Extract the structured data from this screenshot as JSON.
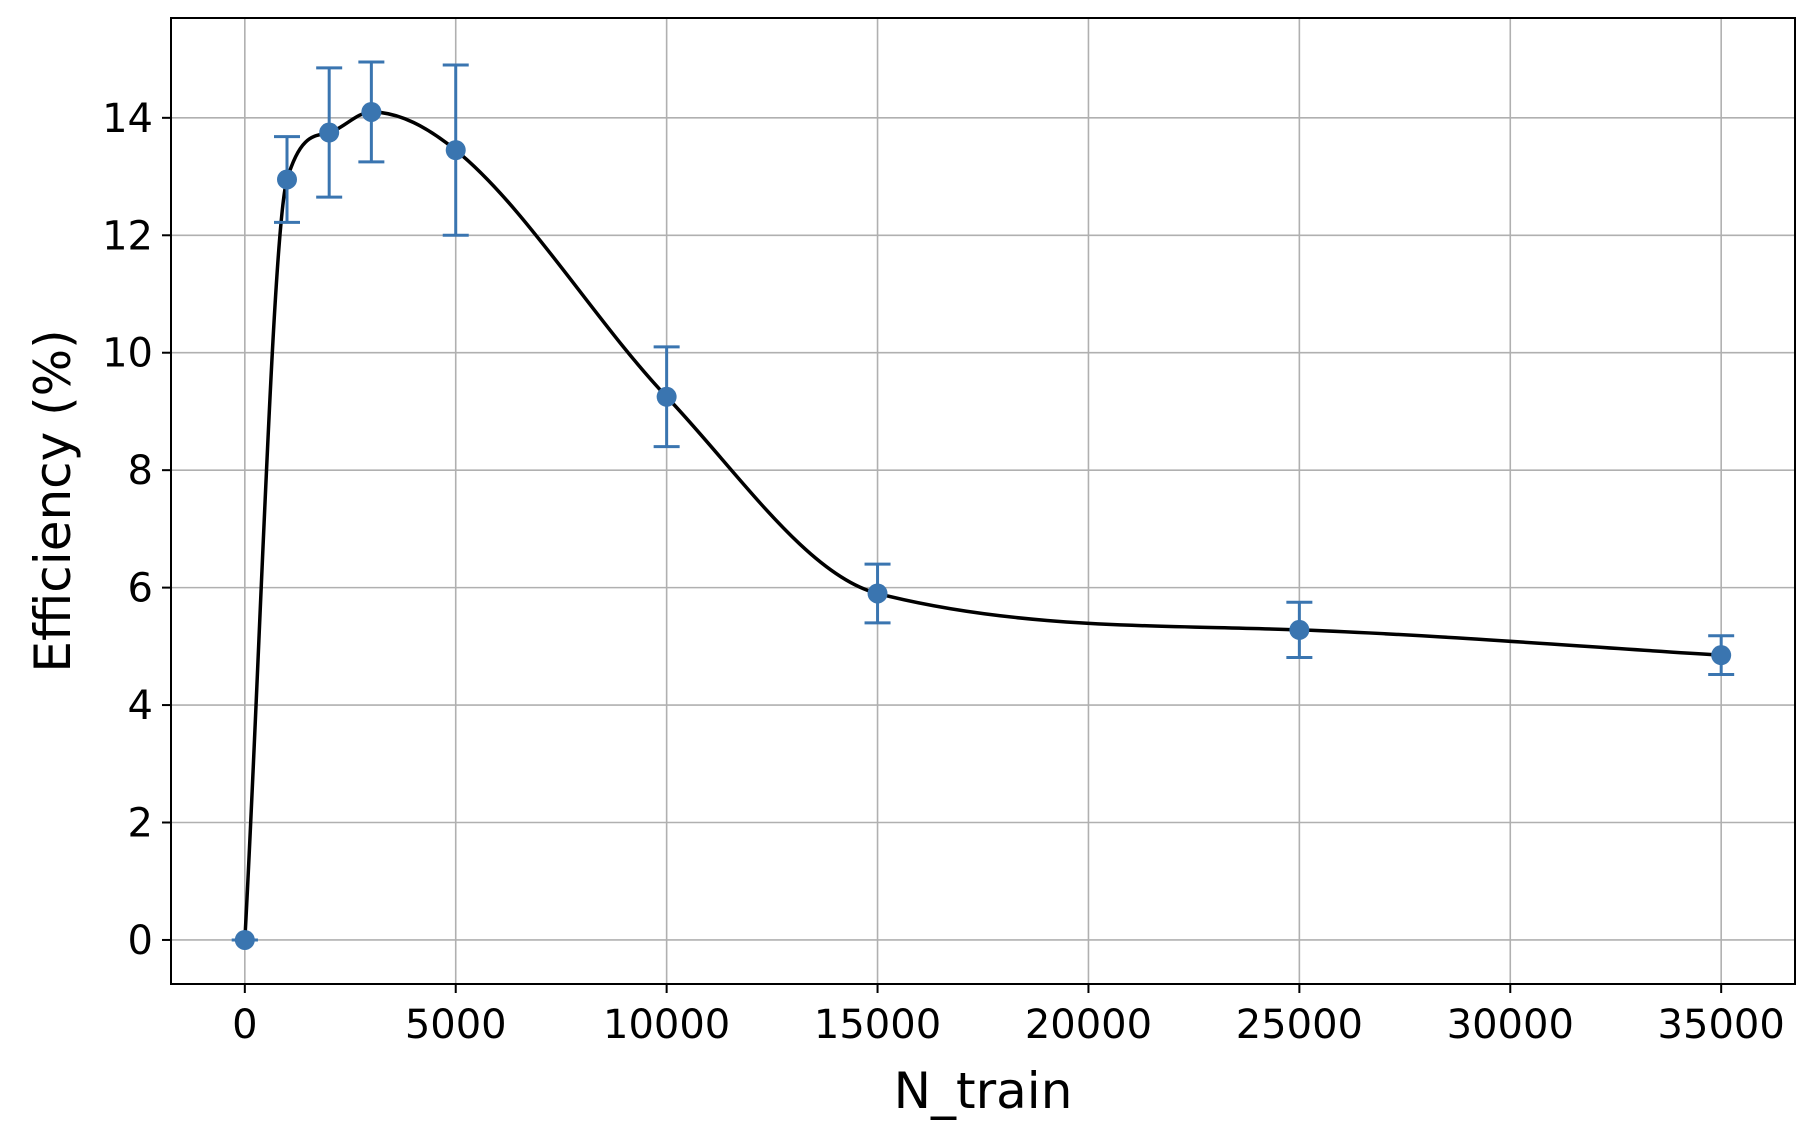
{
  "chart_data": {
    "type": "line",
    "title": "",
    "xlabel": "N_train",
    "ylabel": "Efficiency (%)",
    "xlim": [
      -1750,
      36750
    ],
    "ylim": [
      -0.75,
      15.7
    ],
    "x_ticks": [
      0,
      5000,
      10000,
      15000,
      20000,
      25000,
      30000,
      35000
    ],
    "y_ticks": [
      0,
      2,
      4,
      6,
      8,
      10,
      12,
      14
    ],
    "grid": true,
    "legend": "none",
    "series": [
      {
        "x": [
          0,
          1000,
          2000,
          3000,
          5000,
          10000,
          15000,
          25000,
          35000
        ],
        "y": [
          0.0,
          12.95,
          13.75,
          14.1,
          13.45,
          9.25,
          5.9,
          5.28,
          4.85
        ],
        "err": [
          0.0,
          0.73,
          1.1,
          0.85,
          1.45,
          0.85,
          0.5,
          0.47,
          0.33
        ],
        "color": "#3a75b0",
        "marker": "circle",
        "fit_color": "#000000"
      }
    ]
  }
}
